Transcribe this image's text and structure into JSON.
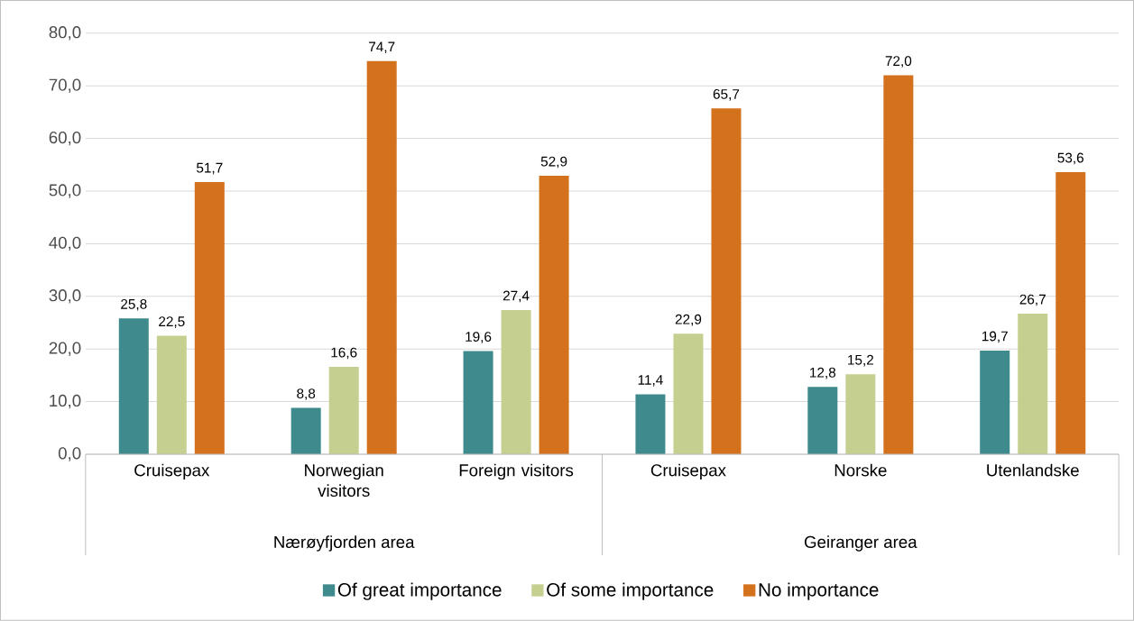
{
  "chart_data": {
    "type": "bar",
    "categories": [
      "Cruisepax",
      "Norwegian visitors",
      "Foreign visitors",
      "Cruisepax",
      "Norske",
      "Utenlandske"
    ],
    "series": [
      {
        "name": "Of great importance",
        "color": "#3f8a8c",
        "values": [
          25.8,
          8.8,
          19.6,
          11.4,
          12.8,
          19.7
        ],
        "value_labels": [
          "25,8",
          "8,8",
          "19,6",
          "11,4",
          "12,8",
          "19,7"
        ]
      },
      {
        "name": "Of some importance",
        "color": "#c5cf8f",
        "values": [
          22.5,
          16.6,
          27.4,
          22.9,
          15.2,
          26.7
        ],
        "value_labels": [
          "22,5",
          "16,6",
          "27,4",
          "22,9",
          "15,2",
          "26,7"
        ]
      },
      {
        "name": "No importance",
        "color": "#d4711d",
        "values": [
          51.7,
          74.7,
          52.9,
          65.7,
          72.0,
          53.6
        ],
        "value_labels": [
          "51,7",
          "74,7",
          "52,9",
          "65,7",
          "72,0",
          "53,6"
        ]
      }
    ],
    "ylim": [
      0,
      80
    ],
    "yticks": [
      {
        "value": 0,
        "label": "0,0"
      },
      {
        "value": 10,
        "label": "10,0"
      },
      {
        "value": 20,
        "label": "20,0"
      },
      {
        "value": 30,
        "label": "30,0"
      },
      {
        "value": 40,
        "label": "40,0"
      },
      {
        "value": 50,
        "label": "50,0"
      },
      {
        "value": 60,
        "label": "60,0"
      },
      {
        "value": 70,
        "label": "70,0"
      },
      {
        "value": 80,
        "label": "80,0"
      }
    ],
    "annotations": [
      "Nærøyfjorden area",
      "Geiranger area"
    ],
    "grid": "y",
    "legend": "bottom"
  }
}
